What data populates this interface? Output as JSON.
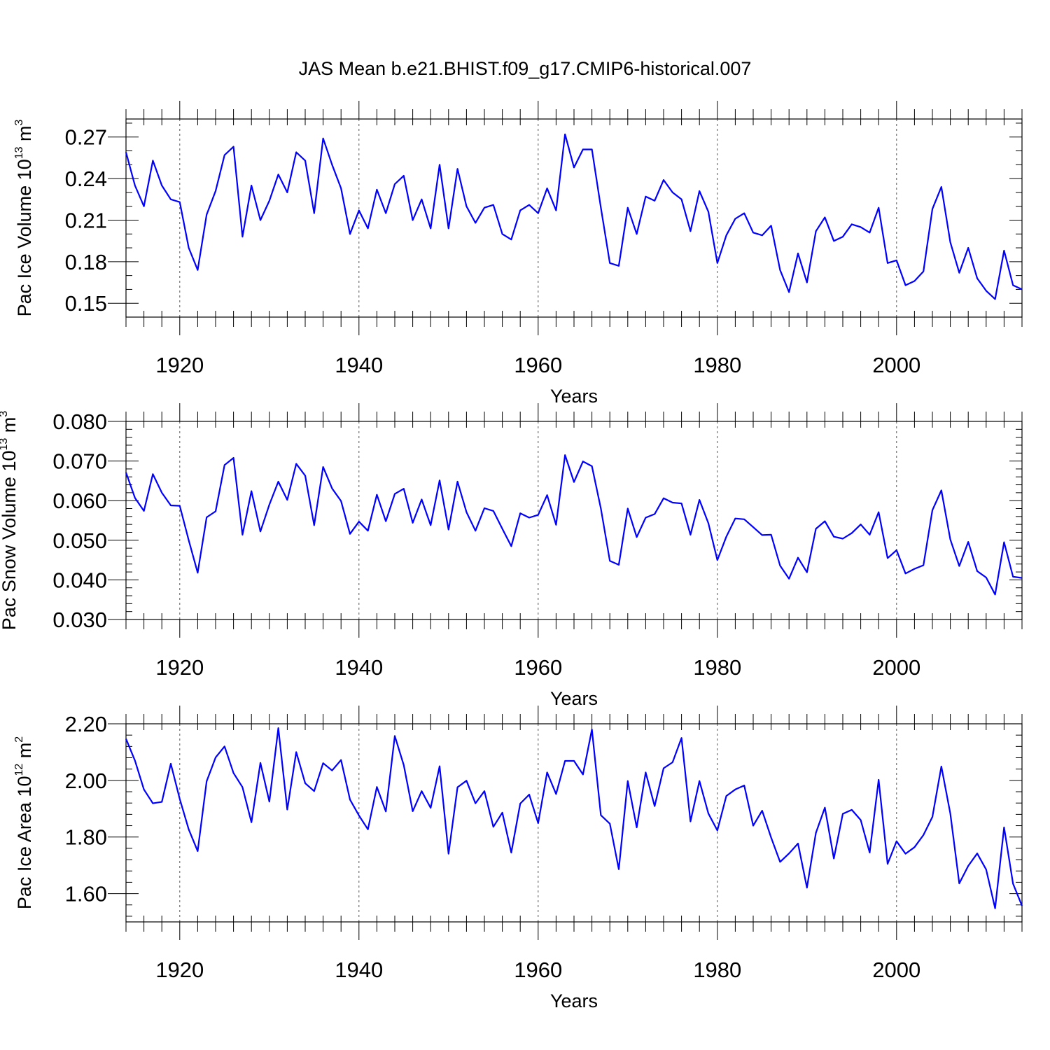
{
  "title": "JAS Mean b.e21.BHIST.f09_g17.CMIP6-historical.007",
  "colors": {
    "series": "#0000ff",
    "axis": "#000000"
  },
  "years": [
    1914,
    1915,
    1916,
    1917,
    1918,
    1919,
    1920,
    1921,
    1922,
    1923,
    1924,
    1925,
    1926,
    1927,
    1928,
    1929,
    1930,
    1931,
    1932,
    1933,
    1934,
    1935,
    1936,
    1937,
    1938,
    1939,
    1940,
    1941,
    1942,
    1943,
    1944,
    1945,
    1946,
    1947,
    1948,
    1949,
    1950,
    1951,
    1952,
    1953,
    1954,
    1955,
    1956,
    1957,
    1958,
    1959,
    1960,
    1961,
    1962,
    1963,
    1964,
    1965,
    1966,
    1967,
    1968,
    1969,
    1970,
    1971,
    1972,
    1973,
    1974,
    1975,
    1976,
    1977,
    1978,
    1979,
    1980,
    1981,
    1982,
    1983,
    1984,
    1985,
    1986,
    1987,
    1988,
    1989,
    1990,
    1991,
    1992,
    1993,
    1994,
    1995,
    1996,
    1997,
    1998,
    1999,
    2000,
    2001,
    2002,
    2003,
    2004,
    2005,
    2006,
    2007,
    2008,
    2009,
    2010,
    2011,
    2012,
    2013,
    2014
  ],
  "chart_data": [
    {
      "type": "line",
      "name": "pac-ice-volume",
      "ylabel_main": "Pac Ice Volume 10",
      "ylabel_sup": "13",
      "ylabel_unit": " m",
      "ylabel_unit_sup": "3",
      "xlabel": "Years",
      "xlim": [
        1914,
        2014
      ],
      "ylim": [
        0.14,
        0.283
      ],
      "xticks": [
        1920,
        1940,
        1960,
        1980,
        2000
      ],
      "xtick_labels": [
        "1920",
        "1940",
        "1960",
        "1980",
        "2000"
      ],
      "yticks": [
        0.15,
        0.18,
        0.21,
        0.24,
        0.27
      ],
      "ytick_labels": [
        "0.15",
        "0.18",
        "0.21",
        "0.24",
        "0.27"
      ],
      "ygrid_minor_step": 0.01,
      "series": [
        {
          "name": "Pac Ice Volume",
          "values": [
            0.259,
            0.235,
            0.22,
            0.253,
            0.235,
            0.225,
            0.223,
            0.19,
            0.174,
            0.214,
            0.231,
            0.257,
            0.263,
            0.198,
            0.235,
            0.21,
            0.224,
            0.243,
            0.23,
            0.259,
            0.253,
            0.215,
            0.269,
            0.25,
            0.233,
            0.2,
            0.217,
            0.204,
            0.232,
            0.215,
            0.236,
            0.242,
            0.21,
            0.225,
            0.204,
            0.25,
            0.204,
            0.247,
            0.22,
            0.208,
            0.219,
            0.221,
            0.2,
            0.196,
            0.217,
            0.221,
            0.215,
            0.233,
            0.217,
            0.272,
            0.248,
            0.261,
            0.261,
            0.219,
            0.179,
            0.177,
            0.219,
            0.2,
            0.227,
            0.224,
            0.239,
            0.23,
            0.225,
            0.202,
            0.231,
            0.216,
            0.179,
            0.199,
            0.211,
            0.215,
            0.201,
            0.199,
            0.206,
            0.174,
            0.158,
            0.186,
            0.165,
            0.202,
            0.212,
            0.195,
            0.198,
            0.207,
            0.205,
            0.201,
            0.219,
            0.179,
            0.181,
            0.163,
            0.166,
            0.173,
            0.218,
            0.234,
            0.194,
            0.172,
            0.19,
            0.168,
            0.159,
            0.153,
            0.188,
            0.163,
            0.16
          ]
        }
      ]
    },
    {
      "type": "line",
      "name": "pac-snow-volume",
      "ylabel_main": "Pac Snow Volume 10",
      "ylabel_sup": "13",
      "ylabel_unit": " m",
      "ylabel_unit_sup": "3",
      "xlabel": "Years",
      "xlim": [
        1914,
        2014
      ],
      "ylim": [
        0.03,
        0.08
      ],
      "xticks": [
        1920,
        1940,
        1960,
        1980,
        2000
      ],
      "xtick_labels": [
        "1920",
        "1940",
        "1960",
        "1980",
        "2000"
      ],
      "yticks": [
        0.03,
        0.04,
        0.05,
        0.06,
        0.07,
        0.08
      ],
      "ytick_labels": [
        "0.030",
        "0.040",
        "0.050",
        "0.060",
        "0.070",
        "0.080"
      ],
      "ygrid_minor_step": 0.002,
      "series": [
        {
          "name": "Pac Snow Volume",
          "values": [
            0.0671,
            0.0607,
            0.0574,
            0.0667,
            0.062,
            0.0588,
            0.0587,
            0.05,
            0.0418,
            0.0558,
            0.0573,
            0.069,
            0.0708,
            0.0514,
            0.0624,
            0.0522,
            0.059,
            0.0648,
            0.0602,
            0.0693,
            0.0663,
            0.0538,
            0.0685,
            0.0631,
            0.0599,
            0.0516,
            0.0547,
            0.0524,
            0.0615,
            0.0548,
            0.0617,
            0.063,
            0.0544,
            0.0603,
            0.0538,
            0.0651,
            0.0527,
            0.0648,
            0.0571,
            0.0524,
            0.0581,
            0.0574,
            0.0529,
            0.0485,
            0.0568,
            0.0557,
            0.0564,
            0.0614,
            0.0539,
            0.0715,
            0.0647,
            0.0699,
            0.0687,
            0.058,
            0.0448,
            0.0438,
            0.058,
            0.0508,
            0.0557,
            0.0566,
            0.0606,
            0.0595,
            0.0593,
            0.0514,
            0.0602,
            0.0543,
            0.045,
            0.0509,
            0.0555,
            0.0553,
            0.0533,
            0.0513,
            0.0514,
            0.0436,
            0.0403,
            0.0456,
            0.0419,
            0.0529,
            0.0548,
            0.0509,
            0.0504,
            0.0518,
            0.054,
            0.0514,
            0.0571,
            0.0455,
            0.0475,
            0.0416,
            0.0428,
            0.0437,
            0.0576,
            0.0626,
            0.0502,
            0.0435,
            0.0496,
            0.0422,
            0.0406,
            0.0363,
            0.0495,
            0.0408,
            0.0405
          ]
        }
      ]
    },
    {
      "type": "line",
      "name": "pac-ice-area",
      "ylabel_main": "Pac Ice Area 10",
      "ylabel_sup": "12",
      "ylabel_unit": " m",
      "ylabel_unit_sup": "2",
      "xlabel": "Years",
      "xlim": [
        1914,
        2014
      ],
      "ylim": [
        1.5,
        2.2
      ],
      "xticks": [
        1920,
        1940,
        1960,
        1980,
        2000
      ],
      "xtick_labels": [
        "1920",
        "1940",
        "1960",
        "1980",
        "2000"
      ],
      "yticks": [
        1.6,
        1.8,
        2.0,
        2.2
      ],
      "ytick_labels": [
        "1.60",
        "1.80",
        "2.00",
        "2.20"
      ],
      "ygrid_minor_step": 0.04,
      "series": [
        {
          "name": "Pac Ice Area",
          "values": [
            2.147,
            2.07,
            1.968,
            1.919,
            1.924,
            2.059,
            1.934,
            1.827,
            1.75,
            1.997,
            2.081,
            2.12,
            2.026,
            1.976,
            1.852,
            2.062,
            1.925,
            2.185,
            1.897,
            2.1,
            1.99,
            1.962,
            2.061,
            2.035,
            2.072,
            1.932,
            1.876,
            1.827,
            1.977,
            1.89,
            2.157,
            2.054,
            1.891,
            1.962,
            1.903,
            2.05,
            1.741,
            1.976,
            1.999,
            1.919,
            1.962,
            1.836,
            1.886,
            1.745,
            1.918,
            1.95,
            1.849,
            2.028,
            1.952,
            2.069,
            2.069,
            2.021,
            2.18,
            1.877,
            1.847,
            1.686,
            1.998,
            1.834,
            2.028,
            1.909,
            2.043,
            2.064,
            2.15,
            1.855,
            1.998,
            1.883,
            1.823,
            1.945,
            1.968,
            1.982,
            1.84,
            1.893,
            1.798,
            1.712,
            1.742,
            1.777,
            1.621,
            1.815,
            1.904,
            1.724,
            1.882,
            1.896,
            1.86,
            1.745,
            2.002,
            1.705,
            1.785,
            1.741,
            1.764,
            1.807,
            1.871,
            2.049,
            1.883,
            1.636,
            1.698,
            1.742,
            1.685,
            1.548,
            1.834,
            1.635,
            1.557
          ]
        }
      ]
    }
  ]
}
